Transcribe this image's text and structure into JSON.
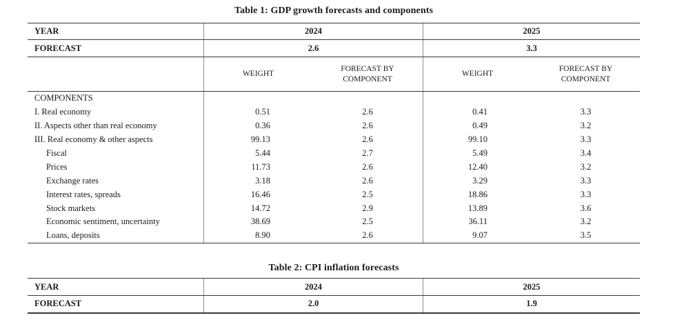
{
  "page": {
    "background_color": "#ffffff",
    "text_color": "#1a1a1a",
    "rule_color": "#383838",
    "divider_color": "#8c8c8c"
  },
  "table1": {
    "title": "Table 1: GDP growth forecasts and components",
    "year_row": {
      "label": "YEAR",
      "y2024": "2024",
      "y2025": "2025"
    },
    "forecast_row": {
      "label": "FORECAST",
      "f2024": "2.6",
      "f2025": "3.3"
    },
    "col_headers": {
      "weight": "WEIGHT",
      "forecast_by_component": "FORECAST BY COMPONENT"
    },
    "components_label": "COMPONENTS",
    "rows": [
      {
        "label": "I. Real economy",
        "w2024": "0.51",
        "f2024": "2.6",
        "w2025": "0.41",
        "f2025": "3.3"
      },
      {
        "label": "II. Aspects other than real economy",
        "w2024": "0.36",
        "f2024": "2.6",
        "w2025": "0.49",
        "f2025": "3.2"
      },
      {
        "label": "III. Real economy & other aspects",
        "w2024": "99.13",
        "f2024": "2.6",
        "w2025": "99.10",
        "f2025": "3.3"
      },
      {
        "label": "Fiscal",
        "w2024": "5.44",
        "f2024": "2.7",
        "w2025": "5.49",
        "f2025": "3.4"
      },
      {
        "label": "Prices",
        "w2024": "11.73",
        "f2024": "2.6",
        "w2025": "12.40",
        "f2025": "3.2"
      },
      {
        "label": "Exchange rates",
        "w2024": "3.18",
        "f2024": "2.6",
        "w2025": "3.29",
        "f2025": "3.3"
      },
      {
        "label": "Interest rates, spreads",
        "w2024": "16.46",
        "f2024": "2.5",
        "w2025": "18.86",
        "f2025": "3.3"
      },
      {
        "label": "Stock markets",
        "w2024": "14.72",
        "f2024": "2.9",
        "w2025": "13.89",
        "f2025": "3.6"
      },
      {
        "label": "Economic sentiment, uncertainty",
        "w2024": "38.69",
        "f2024": "2.5",
        "w2025": "36.11",
        "f2025": "3.2"
      },
      {
        "label": "Loans, deposits",
        "w2024": "8.90",
        "f2024": "2.6",
        "w2025": "9.07",
        "f2025": "3.5"
      }
    ]
  },
  "table2": {
    "title": "Table 2: CPI inflation forecasts",
    "year_row": {
      "label": "YEAR",
      "y2024": "2024",
      "y2025": "2025"
    },
    "forecast_row": {
      "label": "FORECAST",
      "f2024": "2.0",
      "f2025": "1.9"
    }
  }
}
